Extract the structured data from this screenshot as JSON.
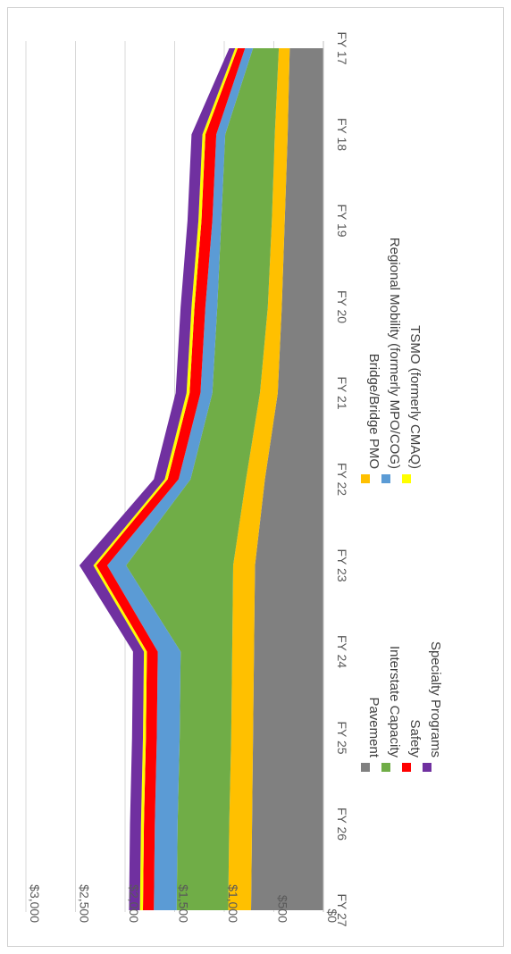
{
  "chart_data": {
    "type": "area",
    "stacked": true,
    "orientation": "rotated-90-clockwise",
    "title": "",
    "xlabel": "",
    "ylabel": "",
    "x": [
      "FY 17",
      "FY 18",
      "FY 19",
      "FY 20",
      "FY 21",
      "FY 22",
      "FY 23",
      "FY 24",
      "FY 25",
      "FY 26",
      "FY 27"
    ],
    "ylim": [
      0,
      3000
    ],
    "y_ticks": [
      0,
      500,
      1000,
      1500,
      2000,
      2500,
      3000
    ],
    "y_tick_labels": [
      "$0",
      "$500",
      "$1,000",
      "$1,500",
      "$2,000",
      "$2,500",
      "$3,000"
    ],
    "grid": true,
    "legend_position": "bottom",
    "series": [
      {
        "name": "Pavement",
        "color": "#808080",
        "values": [
          340,
          360,
          390,
          420,
          460,
          590,
          690,
          700,
          710,
          720,
          730
        ]
      },
      {
        "name": "Bridge/Bridge PMO",
        "color": "#ffc000",
        "values": [
          110,
          130,
          130,
          140,
          180,
          190,
          220,
          220,
          220,
          230,
          230
        ]
      },
      {
        "name": "Interstate Capacity",
        "color": "#70ad47",
        "values": [
          260,
          500,
          510,
          510,
          480,
          560,
          1080,
          520,
          520,
          520,
          520
        ]
      },
      {
        "name": "Regional Mobility (formerly MPO/COG)",
        "color": "#5b9bd5",
        "values": [
          80,
          90,
          90,
          120,
          120,
          120,
          190,
          230,
          230,
          230,
          230
        ]
      },
      {
        "name": "Safety",
        "color": "#ff0000",
        "values": [
          75,
          110,
          110,
          110,
          110,
          110,
          110,
          110,
          110,
          110,
          110
        ]
      },
      {
        "name": "TSMO (formerly CMAQ)",
        "color": "#ffff00",
        "values": [
          25,
          30,
          30,
          30,
          30,
          30,
          30,
          30,
          30,
          30,
          30
        ]
      },
      {
        "name": "Specialty Programs",
        "color": "#7030a0",
        "values": [
          60,
          110,
          110,
          110,
          110,
          110,
          140,
          110,
          110,
          110,
          110
        ]
      }
    ]
  }
}
